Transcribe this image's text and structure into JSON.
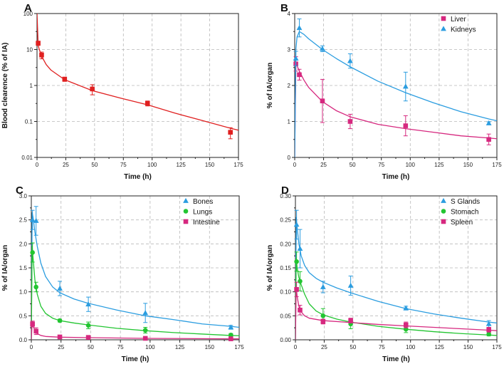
{
  "chart_data": [
    {
      "panel": "A",
      "type": "scatter",
      "yscale": "log",
      "xlabel": "Time (h)",
      "ylabel": "Blood clearence (% of IA)",
      "xlim": [
        0,
        175
      ],
      "ylim": [
        0.01,
        100
      ],
      "xticks": [
        0,
        25,
        50,
        75,
        100,
        125,
        150,
        175
      ],
      "yticks": [
        0.01,
        0.1,
        1,
        10,
        100
      ],
      "ytick_labels": [
        "0.01",
        "0.1",
        "1",
        "10",
        "100"
      ],
      "grid": true,
      "series": [
        {
          "name": "Blood",
          "marker": "square",
          "color": "#e02020",
          "points": [
            {
              "x": 1,
              "y": 15,
              "err": 2
            },
            {
              "x": 4,
              "y": 7,
              "err": 1.5
            },
            {
              "x": 24,
              "y": 1.5,
              "err": 0.2
            },
            {
              "x": 48,
              "y": 0.8,
              "err": 0.25
            },
            {
              "x": 96,
              "y": 0.32,
              "err": 0.05
            },
            {
              "x": 168,
              "y": 0.05,
              "err": 0.017
            }
          ],
          "fit": [
            [
              0,
              100
            ],
            [
              1,
              13
            ],
            [
              2,
              10
            ],
            [
              4,
              6.5
            ],
            [
              8,
              3.8
            ],
            [
              12,
              2.7
            ],
            [
              24,
              1.45
            ],
            [
              48,
              0.72
            ],
            [
              72,
              0.45
            ],
            [
              96,
              0.29
            ],
            [
              120,
              0.17
            ],
            [
              144,
              0.105
            ],
            [
              168,
              0.065
            ],
            [
              175,
              0.057
            ]
          ]
        }
      ]
    },
    {
      "panel": "B",
      "type": "scatter",
      "yscale": "linear",
      "xlabel": "Time (h)",
      "ylabel": "% of IA/organ",
      "xlim": [
        0,
        175
      ],
      "ylim": [
        0,
        4
      ],
      "xticks": [
        0,
        25,
        50,
        75,
        100,
        125,
        150,
        175
      ],
      "yticks": [
        0,
        1,
        2,
        3,
        4
      ],
      "ytick_labels": [
        "0",
        "1",
        "2",
        "3",
        "4"
      ],
      "grid": true,
      "legend": "top-right",
      "series": [
        {
          "name": "Liver",
          "marker": "square",
          "color": "#d6287f",
          "points": [
            {
              "x": 1,
              "y": 2.6,
              "err": 0.2
            },
            {
              "x": 4,
              "y": 2.3,
              "err": 0.15
            },
            {
              "x": 24,
              "y": 1.57,
              "err": 0.6
            },
            {
              "x": 48,
              "y": 1.0,
              "err": 0.2
            },
            {
              "x": 96,
              "y": 0.88,
              "err": 0.28
            },
            {
              "x": 168,
              "y": 0.5,
              "err": 0.15
            }
          ],
          "fit": [
            [
              0,
              0
            ],
            [
              1,
              2.6
            ],
            [
              2,
              2.55
            ],
            [
              4,
              2.4
            ],
            [
              8,
              2.15
            ],
            [
              12,
              1.95
            ],
            [
              24,
              1.55
            ],
            [
              36,
              1.3
            ],
            [
              48,
              1.13
            ],
            [
              72,
              0.92
            ],
            [
              96,
              0.8
            ],
            [
              120,
              0.7
            ],
            [
              144,
              0.6
            ],
            [
              168,
              0.54
            ],
            [
              175,
              0.52
            ]
          ]
        },
        {
          "name": "Kidneys",
          "marker": "triangle",
          "color": "#2b9de0",
          "points": [
            {
              "x": 1,
              "y": 2.75,
              "err": 0.2
            },
            {
              "x": 4,
              "y": 3.6,
              "err": 0.25
            },
            {
              "x": 24,
              "y": 3.02,
              "err": 0.08
            },
            {
              "x": 48,
              "y": 2.68,
              "err": 0.2
            },
            {
              "x": 96,
              "y": 1.97,
              "err": 0.4
            },
            {
              "x": 168,
              "y": 0.95,
              "err": 0.04
            }
          ],
          "fit": [
            [
              0,
              0
            ],
            [
              1,
              3.0
            ],
            [
              2,
              3.35
            ],
            [
              4,
              3.5
            ],
            [
              8,
              3.42
            ],
            [
              12,
              3.3
            ],
            [
              24,
              3.0
            ],
            [
              36,
              2.75
            ],
            [
              48,
              2.52
            ],
            [
              72,
              2.12
            ],
            [
              96,
              1.8
            ],
            [
              120,
              1.52
            ],
            [
              144,
              1.27
            ],
            [
              168,
              1.07
            ],
            [
              175,
              1.02
            ]
          ]
        }
      ]
    },
    {
      "panel": "C",
      "type": "scatter",
      "yscale": "linear",
      "xlabel": "Time (h)",
      "ylabel": "% of IA/organ",
      "xlim": [
        0,
        175
      ],
      "ylim": [
        0,
        3.0
      ],
      "xticks": [
        0,
        25,
        50,
        75,
        100,
        125,
        150,
        175
      ],
      "yticks": [
        0,
        0.5,
        1.0,
        1.5,
        2.0,
        2.5,
        3.0
      ],
      "ytick_labels": [
        "0.0",
        "0.5",
        "1.0",
        "1.5",
        "2.0",
        "2.5",
        "3.0"
      ],
      "grid": true,
      "legend": "top-right",
      "series": [
        {
          "name": "Bones",
          "marker": "triangle",
          "color": "#2b9de0",
          "points": [
            {
              "x": 1,
              "y": 2.5,
              "err": 0.2
            },
            {
              "x": 4,
              "y": 2.48,
              "err": 0.3
            },
            {
              "x": 24,
              "y": 1.07,
              "err": 0.15
            },
            {
              "x": 48,
              "y": 0.74,
              "err": 0.15
            },
            {
              "x": 96,
              "y": 0.56,
              "err": 0.2
            },
            {
              "x": 168,
              "y": 0.26,
              "err": 0.04
            }
          ],
          "fit": [
            [
              0,
              0
            ],
            [
              0.7,
              2.65
            ],
            [
              1.5,
              2.55
            ],
            [
              3,
              2.25
            ],
            [
              5,
              1.95
            ],
            [
              8,
              1.6
            ],
            [
              12,
              1.32
            ],
            [
              18,
              1.1
            ],
            [
              24,
              0.98
            ],
            [
              36,
              0.85
            ],
            [
              48,
              0.76
            ],
            [
              72,
              0.62
            ],
            [
              96,
              0.5
            ],
            [
              120,
              0.42
            ],
            [
              144,
              0.33
            ],
            [
              168,
              0.28
            ],
            [
              175,
              0.26
            ]
          ]
        },
        {
          "name": "Lungs",
          "marker": "circle",
          "color": "#22c531",
          "points": [
            {
              "x": 1,
              "y": 1.82,
              "err": 0.2
            },
            {
              "x": 4,
              "y": 1.1,
              "err": 0.1
            },
            {
              "x": 24,
              "y": 0.4,
              "err": 0.03
            },
            {
              "x": 48,
              "y": 0.3,
              "err": 0.07
            },
            {
              "x": 96,
              "y": 0.2,
              "err": 0.06
            },
            {
              "x": 168,
              "y": 0.1,
              "err": 0.03
            }
          ],
          "fit": [
            [
              0,
              0
            ],
            [
              0.7,
              1.95
            ],
            [
              1.5,
              1.7
            ],
            [
              3,
              1.25
            ],
            [
              5,
              0.95
            ],
            [
              8,
              0.7
            ],
            [
              12,
              0.55
            ],
            [
              18,
              0.45
            ],
            [
              24,
              0.4
            ],
            [
              36,
              0.35
            ],
            [
              48,
              0.31
            ],
            [
              72,
              0.24
            ],
            [
              96,
              0.19
            ],
            [
              120,
              0.15
            ],
            [
              144,
              0.12
            ],
            [
              168,
              0.09
            ],
            [
              175,
              0.085
            ]
          ]
        },
        {
          "name": "Intestine",
          "marker": "square",
          "color": "#d6287f",
          "points": [
            {
              "x": 1,
              "y": 0.33,
              "err": 0.06
            },
            {
              "x": 4,
              "y": 0.18,
              "err": 0.07
            },
            {
              "x": 24,
              "y": 0.06,
              "err": 0.01
            },
            {
              "x": 48,
              "y": 0.05,
              "err": 0.01
            },
            {
              "x": 96,
              "y": 0.03,
              "err": 0.01
            },
            {
              "x": 168,
              "y": 0.02,
              "err": 0.005
            }
          ],
          "fit": [
            [
              0,
              0
            ],
            [
              0.7,
              0.35
            ],
            [
              1.5,
              0.28
            ],
            [
              3,
              0.2
            ],
            [
              5,
              0.13
            ],
            [
              8,
              0.09
            ],
            [
              12,
              0.07
            ],
            [
              24,
              0.055
            ],
            [
              48,
              0.045
            ],
            [
              96,
              0.03
            ],
            [
              168,
              0.02
            ],
            [
              175,
              0.02
            ]
          ]
        }
      ]
    },
    {
      "panel": "D",
      "type": "scatter",
      "yscale": "linear",
      "xlabel": "Time (h)",
      "ylabel": "% of IA/organ",
      "xlim": [
        0,
        175
      ],
      "ylim": [
        0,
        0.3
      ],
      "xticks": [
        0,
        25,
        50,
        75,
        100,
        125,
        150,
        175
      ],
      "yticks": [
        0,
        0.05,
        0.1,
        0.15,
        0.2,
        0.25,
        0.3
      ],
      "ytick_labels": [
        "0.00",
        "0.05",
        "0.10",
        "0.15",
        "0.20",
        "0.25",
        "0.30"
      ],
      "grid": true,
      "legend": "top-right",
      "series": [
        {
          "name": "S Glands",
          "marker": "triangle",
          "color": "#2b9de0",
          "points": [
            {
              "x": 1,
              "y": 0.24,
              "err": 0.03
            },
            {
              "x": 4,
              "y": 0.19,
              "err": 0.04
            },
            {
              "x": 24,
              "y": 0.11,
              "err": 0.012
            },
            {
              "x": 48,
              "y": 0.113,
              "err": 0.02
            },
            {
              "x": 96,
              "y": 0.066,
              "err": 0.004
            },
            {
              "x": 168,
              "y": 0.033,
              "err": 0.007
            }
          ],
          "fit": [
            [
              0,
              0
            ],
            [
              0.7,
              0.255
            ],
            [
              1.5,
              0.235
            ],
            [
              3,
              0.2
            ],
            [
              5,
              0.175
            ],
            [
              8,
              0.155
            ],
            [
              12,
              0.14
            ],
            [
              18,
              0.128
            ],
            [
              24,
              0.12
            ],
            [
              36,
              0.108
            ],
            [
              48,
              0.098
            ],
            [
              72,
              0.08
            ],
            [
              96,
              0.065
            ],
            [
              120,
              0.054
            ],
            [
              144,
              0.045
            ],
            [
              168,
              0.037
            ],
            [
              175,
              0.035
            ]
          ]
        },
        {
          "name": "Stomach",
          "marker": "circle",
          "color": "#22c531",
          "points": [
            {
              "x": 1,
              "y": 0.163,
              "err": 0.02
            },
            {
              "x": 4,
              "y": 0.122,
              "err": 0.02
            },
            {
              "x": 24,
              "y": 0.05,
              "err": 0.015
            },
            {
              "x": 48,
              "y": 0.033,
              "err": 0.01
            },
            {
              "x": 96,
              "y": 0.022,
              "err": 0.007
            },
            {
              "x": 168,
              "y": 0.012,
              "err": 0.004
            }
          ],
          "fit": [
            [
              0,
              0
            ],
            [
              0.7,
              0.17
            ],
            [
              1.5,
              0.15
            ],
            [
              3,
              0.13
            ],
            [
              5,
              0.115
            ],
            [
              8,
              0.095
            ],
            [
              12,
              0.075
            ],
            [
              18,
              0.06
            ],
            [
              24,
              0.052
            ],
            [
              36,
              0.043
            ],
            [
              48,
              0.037
            ],
            [
              72,
              0.028
            ],
            [
              96,
              0.022
            ],
            [
              120,
              0.017
            ],
            [
              144,
              0.013
            ],
            [
              168,
              0.01
            ],
            [
              175,
              0.009
            ]
          ]
        },
        {
          "name": "Spleen",
          "marker": "square",
          "color": "#d6287f",
          "points": [
            {
              "x": 1,
              "y": 0.105,
              "err": 0.015
            },
            {
              "x": 4,
              "y": 0.062,
              "err": 0.01
            },
            {
              "x": 24,
              "y": 0.038,
              "err": 0.005
            },
            {
              "x": 48,
              "y": 0.04,
              "err": 0.005
            },
            {
              "x": 96,
              "y": 0.031,
              "err": 0.006
            },
            {
              "x": 168,
              "y": 0.021,
              "err": 0.005
            }
          ],
          "fit": [
            [
              0,
              0
            ],
            [
              0.7,
              0.11
            ],
            [
              1.5,
              0.09
            ],
            [
              3,
              0.07
            ],
            [
              5,
              0.058
            ],
            [
              8,
              0.05
            ],
            [
              12,
              0.045
            ],
            [
              24,
              0.04
            ],
            [
              48,
              0.036
            ],
            [
              72,
              0.032
            ],
            [
              96,
              0.029
            ],
            [
              120,
              0.026
            ],
            [
              144,
              0.023
            ],
            [
              168,
              0.02
            ],
            [
              175,
              0.019
            ]
          ]
        }
      ]
    }
  ]
}
